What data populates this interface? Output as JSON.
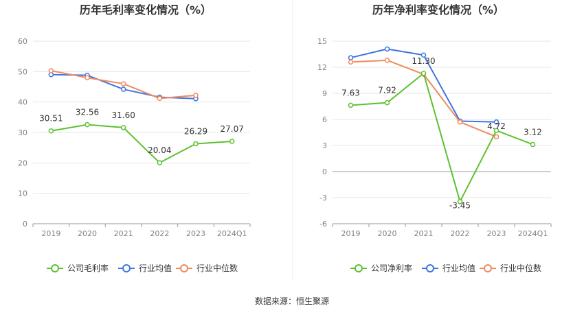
{
  "colors": {
    "company": "#5cc12f",
    "industry_avg": "#3f74e0",
    "industry_median": "#f08a5d",
    "axis": "#999999",
    "grid": "#e6e6e6",
    "divider": "#eeeeee"
  },
  "source_text": "数据来源：恒生聚源",
  "chart_data": [
    {
      "type": "line",
      "title": "历年毛利率变化情况（%）",
      "categories": [
        "2019",
        "2020",
        "2021",
        "2022",
        "2023",
        "2024Q1"
      ],
      "ylim": [
        0,
        60
      ],
      "yticks": [
        "0",
        "10",
        "20",
        "30",
        "40",
        "50",
        "60"
      ],
      "grid": true,
      "legend_position": "bottom",
      "series": [
        {
          "name": "公司毛利率",
          "key": "company",
          "values": [
            30.51,
            32.56,
            31.6,
            20.04,
            26.29,
            27.07
          ],
          "labels": [
            "30.51",
            "32.56",
            "31.60",
            "20.04",
            "26.29",
            "27.07"
          ]
        },
        {
          "name": "行业均值",
          "key": "industry_avg",
          "values": [
            49.0,
            48.8,
            44.2,
            41.6,
            41.1,
            null
          ]
        },
        {
          "name": "行业中位数",
          "key": "industry_median",
          "values": [
            50.3,
            48.0,
            46.0,
            41.2,
            42.2,
            null
          ]
        }
      ]
    },
    {
      "type": "line",
      "title": "历年净利率变化情况（%）",
      "categories": [
        "2019",
        "2020",
        "2021",
        "2022",
        "2023",
        "2024Q1"
      ],
      "ylim": [
        -6,
        15
      ],
      "yticks": [
        "-6",
        "-3",
        "0",
        "3",
        "6",
        "9",
        "12",
        "15"
      ],
      "grid": true,
      "legend_position": "bottom",
      "series": [
        {
          "name": "公司净利率",
          "key": "company",
          "values": [
            7.63,
            7.92,
            11.3,
            -3.45,
            4.72,
            3.12
          ],
          "labels": [
            "7.63",
            "7.92",
            "11.30",
            "-3.45",
            "4.72",
            "3.12"
          ]
        },
        {
          "name": "行业均值",
          "key": "industry_avg",
          "values": [
            13.1,
            14.1,
            13.4,
            5.8,
            5.7,
            null
          ]
        },
        {
          "name": "行业中位数",
          "key": "industry_median",
          "values": [
            12.6,
            12.8,
            11.2,
            5.7,
            4.0,
            null
          ]
        }
      ]
    }
  ]
}
